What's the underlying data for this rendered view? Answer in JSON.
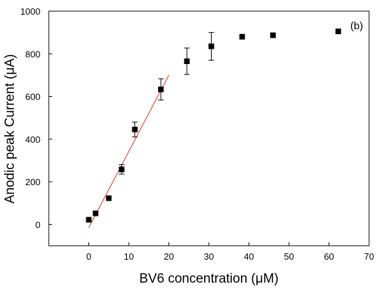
{
  "chart_data": {
    "type": "scatter",
    "xlabel": "BV6 concentration (μM)",
    "ylabel": "Anodic peak Current (μA)",
    "annotation": "(b)",
    "xlim": [
      -10,
      70
    ],
    "ylim": [
      -100,
      1000
    ],
    "x_ticks": [
      0,
      10,
      20,
      30,
      40,
      50,
      60,
      70
    ],
    "y_ticks": [
      0,
      200,
      400,
      600,
      800,
      1000
    ],
    "x_tick_labels": [
      "0",
      "10",
      "20",
      "30",
      "40",
      "50",
      "60",
      "70"
    ],
    "y_tick_labels": [
      "0",
      "200",
      "400",
      "600",
      "800",
      "1000"
    ],
    "grid": false,
    "series": [
      {
        "marker": "square",
        "color": "#000000",
        "points": [
          {
            "x": 0,
            "y": 22,
            "err": 0
          },
          {
            "x": 1.7,
            "y": 52,
            "err": 0
          },
          {
            "x": 5,
            "y": 123,
            "err": 0
          },
          {
            "x": 8.2,
            "y": 258,
            "err": 22
          },
          {
            "x": 11.5,
            "y": 445,
            "err": 35
          },
          {
            "x": 18,
            "y": 633,
            "err": 50
          },
          {
            "x": 24.5,
            "y": 765,
            "err": 62
          },
          {
            "x": 30.6,
            "y": 835,
            "err": 65
          },
          {
            "x": 38.3,
            "y": 880,
            "err": 0
          },
          {
            "x": 46,
            "y": 887,
            "err": 0
          },
          {
            "x": 62.3,
            "y": 905,
            "err": 0
          }
        ]
      }
    ],
    "fit_line": {
      "color": "#e8251f",
      "x": [
        0,
        20
      ],
      "y": [
        -15,
        700
      ]
    }
  }
}
